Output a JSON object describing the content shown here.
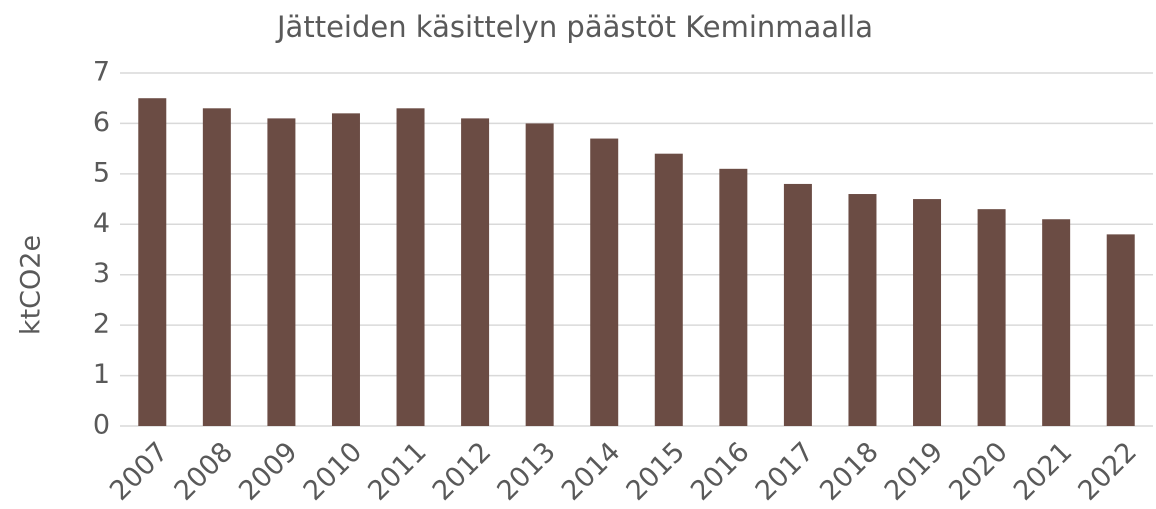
{
  "chart_data": {
    "type": "bar",
    "title": "Jätteiden käsittelyn päästöt Keminmaalla",
    "y_label": "ktCO2e",
    "categories": [
      "2007",
      "2008",
      "2009",
      "2010",
      "2011",
      "2012",
      "2013",
      "2014",
      "2015",
      "2016",
      "2017",
      "2018",
      "2019",
      "2020",
      "2021",
      "2022"
    ],
    "values": [
      6.5,
      6.3,
      6.1,
      6.2,
      6.3,
      6.1,
      6.0,
      5.7,
      5.4,
      5.1,
      4.8,
      4.6,
      4.5,
      4.3,
      4.1,
      3.8
    ],
    "color": "#6b4c44",
    "ylim": [
      0,
      7
    ],
    "yticks": [
      0,
      1,
      2,
      3,
      4,
      5,
      6,
      7
    ],
    "grid": true
  }
}
